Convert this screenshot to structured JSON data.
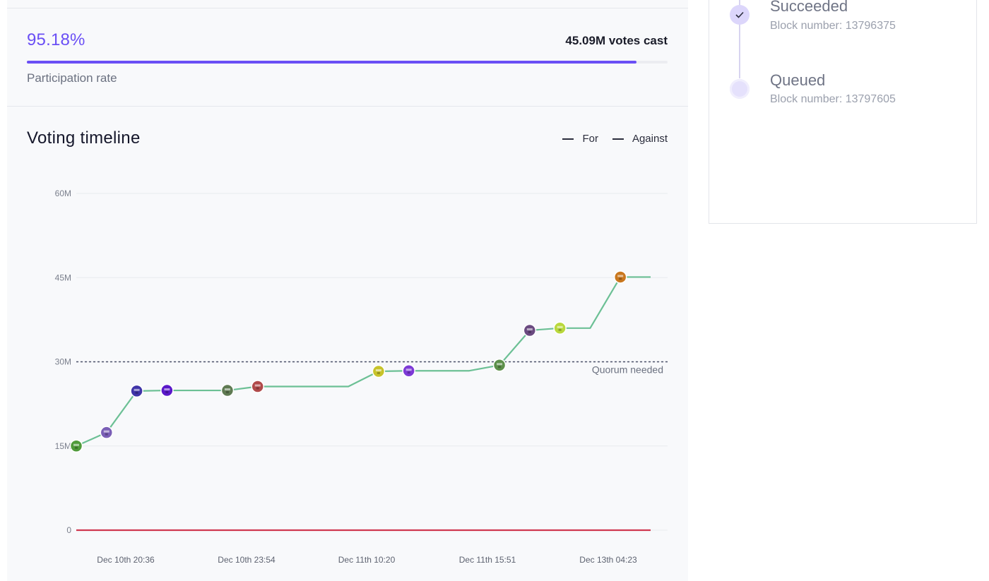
{
  "participation": {
    "rate": "95.18%",
    "rate_fraction": 0.9518,
    "votes_cast": "45.09M votes cast",
    "label": "Participation rate",
    "accent": "#6a4ff5"
  },
  "timeline_section": {
    "title": "Voting timeline",
    "legend": [
      {
        "label": "For"
      },
      {
        "label": "Against"
      }
    ]
  },
  "chart_data": {
    "type": "line",
    "title": "Voting timeline",
    "xlabel": "",
    "ylabel": "",
    "ylim": [
      0,
      60000000
    ],
    "y_ticks": [
      "0",
      "15M",
      "30M",
      "45M",
      "60M"
    ],
    "x_ticks": [
      "Dec 10th 20:36",
      "Dec 10th 23:54",
      "Dec 11th 10:20",
      "Dec 11th 15:51",
      "Dec 13th 04:23"
    ],
    "grid": true,
    "legend_position": "top-right",
    "quorum": {
      "value": 30000000,
      "label": "Quorum needed"
    },
    "series": [
      {
        "name": "For",
        "color": "#6cc095",
        "steps": [
          0,
          1,
          2,
          3,
          4,
          5,
          6,
          7,
          8,
          9,
          10,
          11,
          12,
          13,
          14,
          15,
          16,
          17,
          18,
          19
        ],
        "values": [
          15000000,
          17400000,
          24800000,
          24900000,
          24900000,
          24900000,
          25600000,
          25600000,
          25600000,
          25600000,
          28300000,
          28400000,
          28400000,
          28400000,
          29400000,
          35600000,
          36000000,
          36000000,
          45100000,
          45100000
        ],
        "voters": [
          {
            "step": 0,
            "color": "#4f9a3a"
          },
          {
            "step": 1,
            "color": "#7a5fb6"
          },
          {
            "step": 2,
            "color": "#3f34a8"
          },
          {
            "step": 3,
            "color": "#5a18c9"
          },
          {
            "step": 5,
            "color": "#5f7a52"
          },
          {
            "step": 6,
            "color": "#b04a4a"
          },
          {
            "step": 10,
            "color": "#c7c32a"
          },
          {
            "step": 11,
            "color": "#7d3ad6"
          },
          {
            "step": 14,
            "color": "#5c8f4a"
          },
          {
            "step": 15,
            "color": "#6a4a80"
          },
          {
            "step": 16,
            "color": "#b9d83c"
          },
          {
            "step": 18,
            "color": "#c9771e"
          }
        ]
      },
      {
        "name": "Against",
        "color": "#d0384f",
        "steps": [
          0,
          19
        ],
        "values": [
          0,
          0
        ]
      }
    ]
  },
  "status_timeline": [
    {
      "title": "Succeeded",
      "subtitle": "Block number: 13796375",
      "state": "complete",
      "icon": "check-icon"
    },
    {
      "title": "Queued",
      "subtitle": "Block number: 13797605",
      "state": "pending",
      "icon": "pending-dot-icon"
    }
  ]
}
